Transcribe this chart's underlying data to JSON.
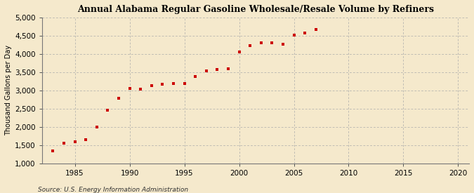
{
  "title": "Annual Alabama Regular Gasoline Wholesale/Resale Volume by Refiners",
  "ylabel": "Thousand Gallons per Day",
  "source": "Source: U.S. Energy Information Administration",
  "background_color": "#f5e9cc",
  "plot_background_color": "#f5e9cc",
  "marker_color": "#cc0000",
  "marker": "s",
  "marker_size": 3.5,
  "xlim": [
    1982,
    2021
  ],
  "ylim": [
    1000,
    5000
  ],
  "xticks": [
    1985,
    1990,
    1995,
    2000,
    2005,
    2010,
    2015,
    2020
  ],
  "yticks": [
    1000,
    1500,
    2000,
    2500,
    3000,
    3500,
    4000,
    4500,
    5000
  ],
  "data": [
    [
      1983,
      1340
    ],
    [
      1984,
      1560
    ],
    [
      1985,
      1580
    ],
    [
      1986,
      1650
    ],
    [
      1987,
      1990
    ],
    [
      1988,
      2460
    ],
    [
      1989,
      2790
    ],
    [
      1990,
      3060
    ],
    [
      1991,
      3030
    ],
    [
      1992,
      3140
    ],
    [
      1993,
      3170
    ],
    [
      1994,
      3190
    ],
    [
      1995,
      3200
    ],
    [
      1996,
      3390
    ],
    [
      1997,
      3530
    ],
    [
      1998,
      3570
    ],
    [
      1999,
      3600
    ],
    [
      2000,
      4060
    ],
    [
      2001,
      4230
    ],
    [
      2002,
      4310
    ],
    [
      2003,
      4310
    ],
    [
      2004,
      4270
    ],
    [
      2005,
      4530
    ],
    [
      2006,
      4590
    ],
    [
      2007,
      4680
    ]
  ]
}
